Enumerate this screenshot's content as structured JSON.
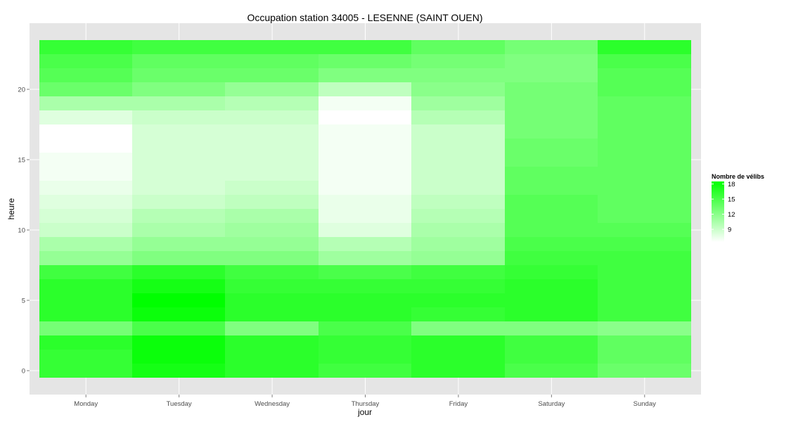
{
  "chart_data": {
    "type": "heatmap",
    "title": "Occupation station 34005 - LESENNE (SAINT OUEN)",
    "xlabel": "jour",
    "ylabel": "heure",
    "x_categories": [
      "Monday",
      "Tuesday",
      "Wednesday",
      "Thursday",
      "Friday",
      "Saturday",
      "Sunday"
    ],
    "y_values": [
      0,
      1,
      2,
      3,
      4,
      5,
      6,
      7,
      8,
      9,
      10,
      11,
      12,
      13,
      14,
      15,
      16,
      17,
      18,
      19,
      20,
      21,
      22,
      23
    ],
    "y_ticks": [
      0,
      5,
      10,
      15,
      20
    ],
    "y_tick_labels": [
      "0",
      "5",
      "10",
      "15",
      "20"
    ],
    "legend": {
      "title": "Nombre de vélibs",
      "min": 6.5,
      "max": 18.5,
      "breaks": [
        9,
        12,
        15,
        18
      ],
      "labels": [
        "9",
        "12",
        "15",
        "18"
      ],
      "low_color": "#ffffff",
      "high_color": "#00ff00",
      "position": "right"
    },
    "values": [
      [
        16.0,
        17.5,
        16.5,
        15.5,
        16.5,
        15.0,
        13.5
      ],
      [
        16.0,
        18.0,
        16.5,
        16.0,
        16.5,
        15.5,
        14.0
      ],
      [
        16.5,
        18.0,
        16.5,
        16.0,
        16.5,
        15.5,
        14.0
      ],
      [
        13.0,
        15.0,
        12.5,
        15.0,
        12.5,
        12.5,
        12.0
      ],
      [
        16.5,
        18.0,
        16.5,
        16.5,
        16.0,
        16.5,
        15.5
      ],
      [
        16.5,
        18.5,
        16.5,
        16.5,
        16.5,
        16.5,
        15.5
      ],
      [
        16.5,
        17.5,
        16.0,
        16.0,
        16.0,
        16.5,
        15.5
      ],
      [
        15.5,
        16.5,
        15.5,
        15.0,
        15.5,
        16.0,
        15.5
      ],
      [
        11.5,
        12.5,
        12.5,
        11.0,
        11.5,
        15.5,
        15.5
      ],
      [
        10.5,
        11.5,
        11.5,
        10.0,
        11.0,
        15.0,
        15.0
      ],
      [
        9.0,
        10.5,
        11.0,
        8.0,
        10.5,
        14.5,
        14.5
      ],
      [
        8.5,
        10.0,
        10.5,
        7.5,
        10.0,
        14.5,
        14.0
      ],
      [
        8.0,
        9.0,
        9.5,
        7.5,
        9.5,
        14.5,
        14.0
      ],
      [
        7.5,
        8.5,
        9.0,
        7.0,
        9.0,
        14.0,
        14.0
      ],
      [
        7.0,
        8.5,
        8.5,
        7.0,
        9.0,
        14.0,
        14.0
      ],
      [
        7.0,
        8.5,
        8.5,
        7.0,
        9.0,
        13.5,
        14.0
      ],
      [
        6.5,
        8.5,
        8.5,
        7.0,
        9.0,
        13.5,
        14.0
      ],
      [
        6.5,
        8.5,
        8.5,
        7.0,
        9.0,
        13.0,
        14.0
      ],
      [
        8.0,
        9.0,
        9.0,
        6.5,
        10.0,
        13.0,
        14.0
      ],
      [
        10.5,
        10.5,
        10.0,
        7.0,
        11.0,
        13.0,
        14.0
      ],
      [
        13.5,
        12.5,
        11.5,
        9.5,
        12.0,
        13.0,
        14.5
      ],
      [
        14.5,
        13.5,
        13.5,
        12.5,
        12.5,
        12.5,
        14.5
      ],
      [
        15.0,
        14.0,
        14.0,
        13.5,
        13.0,
        12.5,
        15.0
      ],
      [
        16.0,
        15.5,
        15.5,
        15.5,
        14.0,
        13.0,
        16.5
      ]
    ],
    "grid": true
  }
}
